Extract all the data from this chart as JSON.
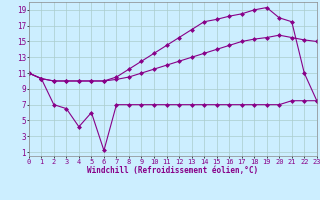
{
  "title": "",
  "xlabel": "Windchill (Refroidissement éolien,°C)",
  "bg_color": "#cceeff",
  "grid_color": "#aacccc",
  "line_color": "#880088",
  "x_ticks": [
    0,
    1,
    2,
    3,
    4,
    5,
    6,
    7,
    8,
    9,
    10,
    11,
    12,
    13,
    14,
    15,
    16,
    17,
    18,
    19,
    20,
    21,
    22,
    23
  ],
  "y_ticks": [
    1,
    3,
    5,
    7,
    9,
    11,
    13,
    15,
    17,
    19
  ],
  "xlim": [
    0,
    23
  ],
  "ylim": [
    0.5,
    20
  ],
  "series1_x": [
    0,
    1,
    2,
    3,
    4,
    5,
    6,
    7,
    8,
    9,
    10,
    11,
    12,
    13,
    14,
    15,
    16,
    17,
    18,
    19,
    20,
    21,
    22,
    23
  ],
  "series1_y": [
    11.0,
    10.3,
    10.0,
    10.0,
    10.0,
    10.0,
    10.0,
    10.2,
    10.5,
    11.0,
    11.5,
    12.0,
    12.5,
    13.0,
    13.5,
    14.0,
    14.5,
    15.0,
    15.3,
    15.5,
    15.8,
    15.5,
    15.2,
    15.0
  ],
  "series2_x": [
    0,
    1,
    2,
    3,
    4,
    5,
    6,
    7,
    8,
    9,
    10,
    11,
    12,
    13,
    14,
    15,
    16,
    17,
    18,
    19,
    20,
    21,
    22,
    23
  ],
  "series2_y": [
    11.0,
    10.3,
    10.0,
    10.0,
    10.0,
    10.0,
    10.0,
    10.5,
    11.5,
    12.5,
    13.5,
    14.5,
    15.5,
    16.5,
    17.5,
    17.8,
    18.2,
    18.5,
    19.0,
    19.3,
    18.0,
    17.5,
    11.0,
    7.5
  ],
  "series3_x": [
    0,
    1,
    2,
    3,
    4,
    5,
    6,
    7,
    8,
    9,
    10,
    11,
    12,
    13,
    14,
    15,
    16,
    17,
    18,
    19,
    20,
    21,
    22,
    23
  ],
  "series3_y": [
    11.0,
    10.3,
    7.0,
    6.5,
    4.2,
    6.0,
    1.2,
    7.0,
    7.0,
    7.0,
    7.0,
    7.0,
    7.0,
    7.0,
    7.0,
    7.0,
    7.0,
    7.0,
    7.0,
    7.0,
    7.0,
    7.5,
    7.5,
    7.5
  ],
  "marker": "D",
  "markersize": 2.5,
  "linewidth": 0.8,
  "tick_fontsize_x": 5.0,
  "tick_fontsize_y": 5.5,
  "xlabel_fontsize": 5.5
}
